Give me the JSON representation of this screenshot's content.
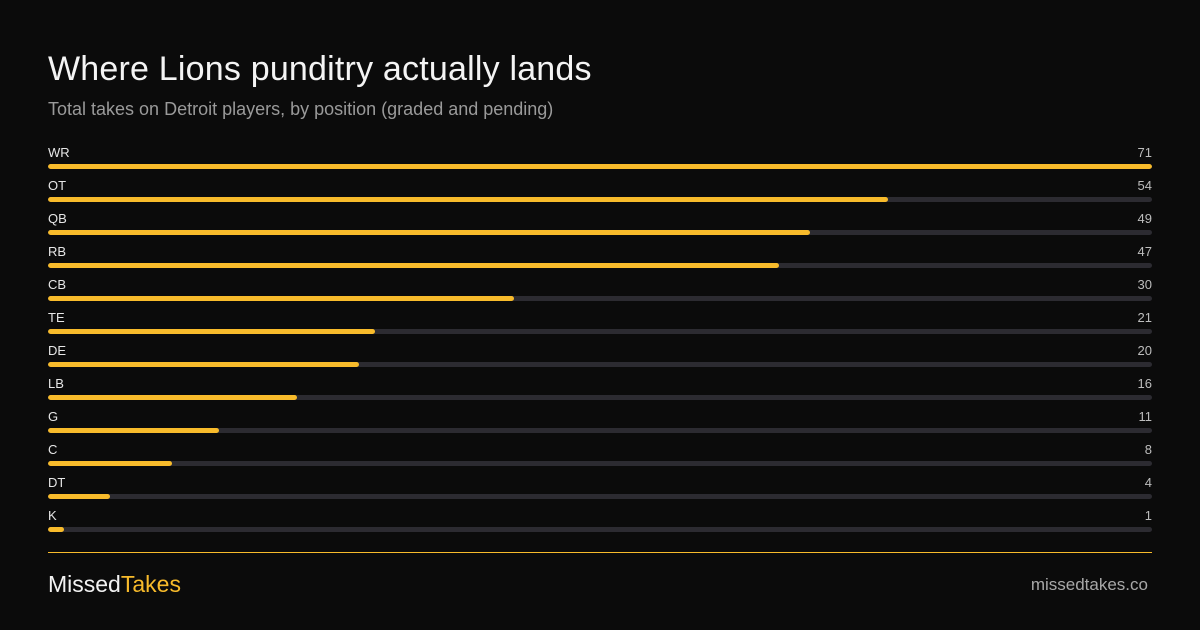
{
  "title": "Where Lions punditry actually lands",
  "subtitle": "Total takes on Detroit players, by position (graded and pending)",
  "colors": {
    "background": "#0b0b0b",
    "bar_fill": "#f8bb2b",
    "bar_track": "#2c2b31",
    "accent": "#f8bb2b"
  },
  "chart_data": {
    "type": "bar",
    "orientation": "horizontal",
    "title": "Where Lions punditry actually lands",
    "subtitle": "Total takes on Detroit players, by position (graded and pending)",
    "categories": [
      "WR",
      "OT",
      "QB",
      "RB",
      "CB",
      "TE",
      "DE",
      "LB",
      "G",
      "C",
      "DT",
      "K"
    ],
    "values": [
      71,
      54,
      49,
      47,
      30,
      21,
      20,
      16,
      11,
      8,
      4,
      1
    ],
    "xlim": [
      0,
      71
    ],
    "grid": false,
    "legend": "none"
  },
  "footer": {
    "brand_part1": "Missed",
    "brand_part2": "Takes",
    "site": "missedtakes.co"
  }
}
